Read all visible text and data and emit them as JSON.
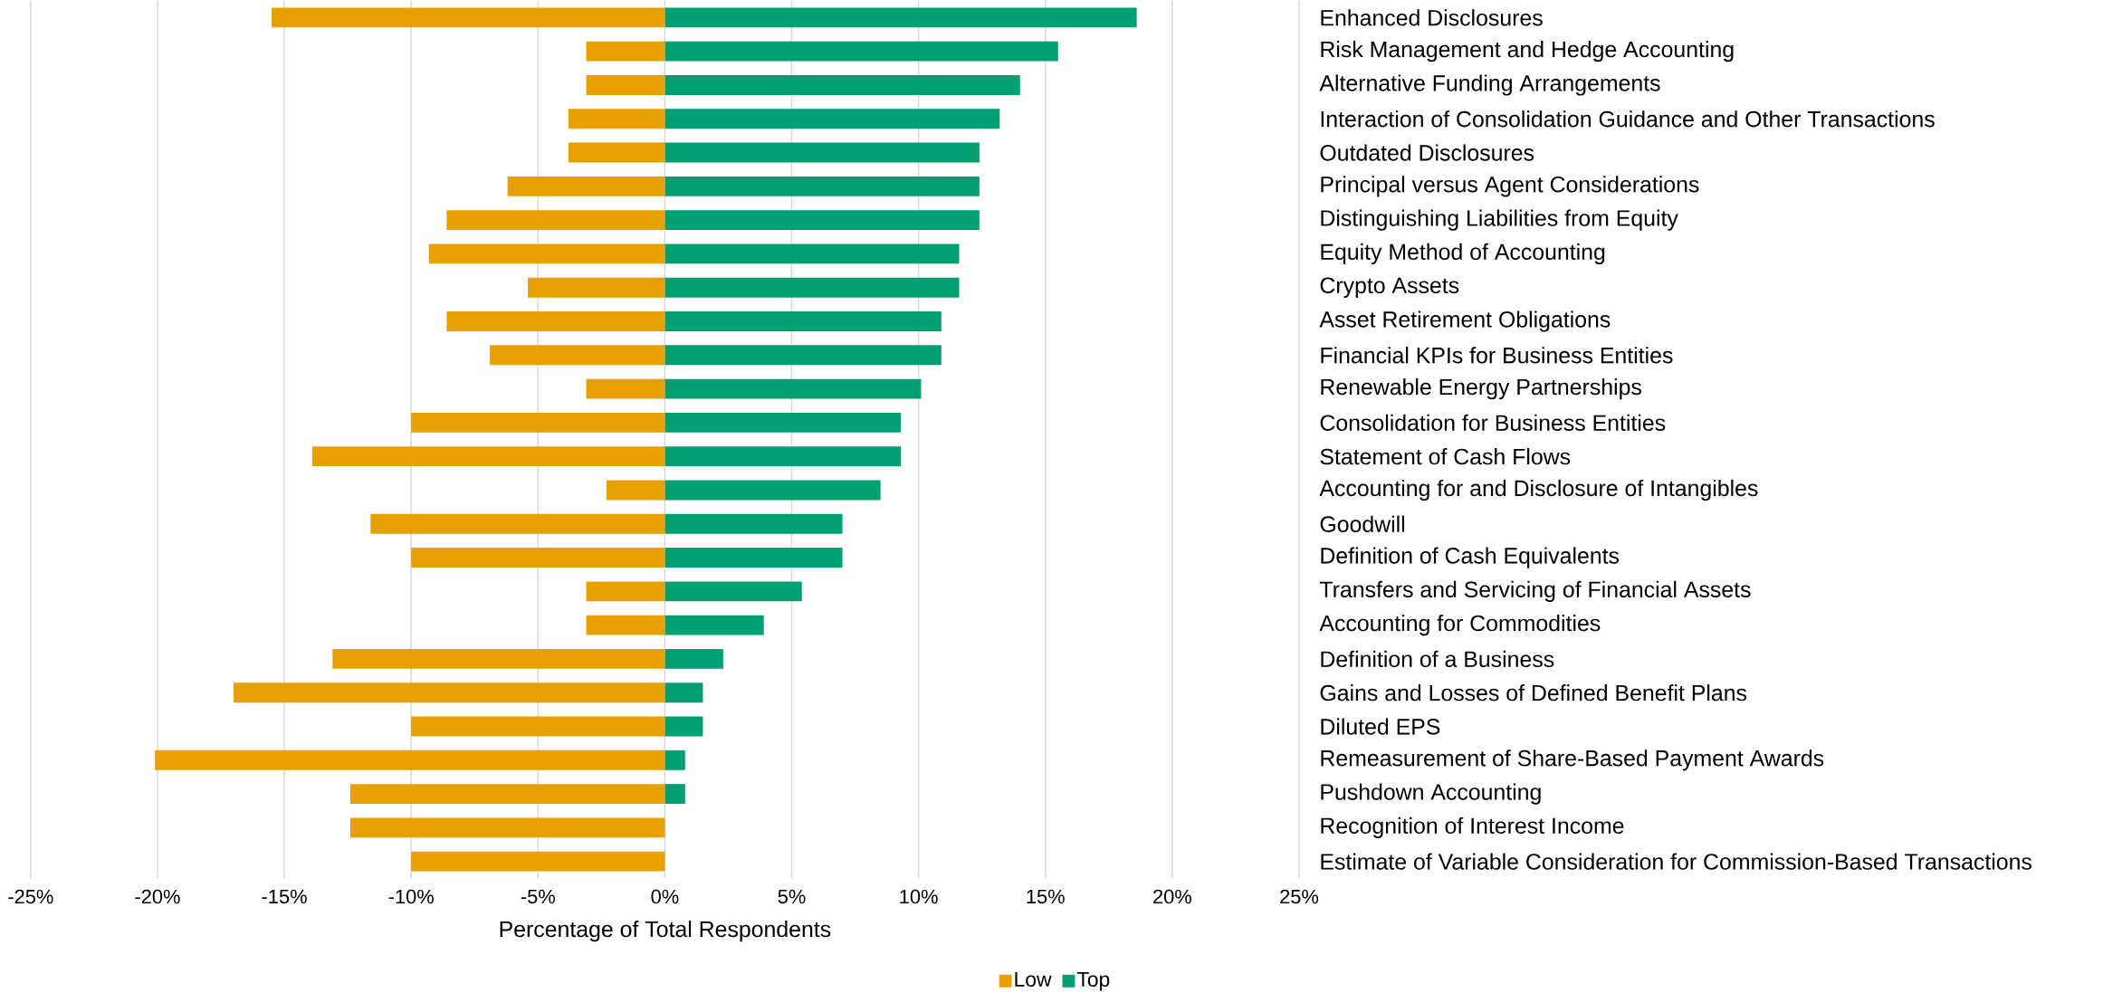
{
  "chart_data": {
    "type": "bar",
    "orientation": "horizontal",
    "xlabel": "Percentage of Total Respondents",
    "categories": [
      "Enhanced Disclosures",
      "Risk Management and Hedge Accounting",
      "Alternative Funding Arrangements",
      "Interaction of Consolidation Guidance and Other Transactions",
      "Outdated Disclosures",
      "Principal versus Agent Considerations",
      "Distinguishing Liabilities from Equity",
      "Equity Method of Accounting",
      "Crypto Assets",
      "Asset Retirement Obligations",
      "Financial KPIs for Business Entities",
      "Renewable Energy Partnerships",
      "Consolidation for Business Entities",
      "Statement of Cash Flows",
      "Accounting for and Disclosure of Intangibles",
      "Goodwill",
      "Definition of Cash Equivalents",
      "Transfers and Servicing of Financial Assets",
      "Accounting for Commodities",
      "Definition of a Business",
      "Gains and Losses of Defined Benefit Plans",
      "Diluted EPS",
      "Remeasurement of Share-Based Payment Awards",
      "Pushdown Accounting",
      "Recognition of Interest Income",
      "Estimate of Variable Consideration for Commission-Based Transactions"
    ],
    "series": [
      {
        "name": "Low",
        "color": "#e6a000",
        "values": [
          -15.5,
          -3.1,
          -3.1,
          -3.8,
          -3.8,
          -6.2,
          -8.6,
          -9.3,
          -5.4,
          -8.6,
          -6.9,
          -3.1,
          -10.0,
          -13.9,
          -2.3,
          -11.6,
          -10.0,
          -3.1,
          -3.1,
          -13.1,
          -17.0,
          -10.0,
          -20.1,
          -12.4,
          -12.4,
          -10.0
        ]
      },
      {
        "name": "Top",
        "color": "#00a074",
        "values": [
          18.6,
          15.5,
          14.0,
          13.2,
          12.4,
          12.4,
          12.4,
          11.6,
          11.6,
          10.9,
          10.9,
          10.1,
          9.3,
          9.3,
          8.5,
          7.0,
          7.0,
          5.4,
          3.9,
          2.3,
          1.5,
          1.5,
          0.8,
          0.8,
          0,
          0
        ]
      }
    ],
    "xlim": [
      -25,
      25
    ],
    "xticks": [
      {
        "value": -25,
        "label": "-25%"
      },
      {
        "value": -20,
        "label": "-20%"
      },
      {
        "value": -15,
        "label": "-15%"
      },
      {
        "value": -10,
        "label": "-10%"
      },
      {
        "value": -5,
        "label": "-5%"
      },
      {
        "value": 0,
        "label": "0%"
      },
      {
        "value": 5,
        "label": "5%"
      },
      {
        "value": 10,
        "label": "10%"
      },
      {
        "value": 15,
        "label": "15%"
      },
      {
        "value": 20,
        "label": "20%"
      },
      {
        "value": 25,
        "label": "25%"
      }
    ],
    "grid": "x",
    "legend": "bottom",
    "stacked": true
  }
}
